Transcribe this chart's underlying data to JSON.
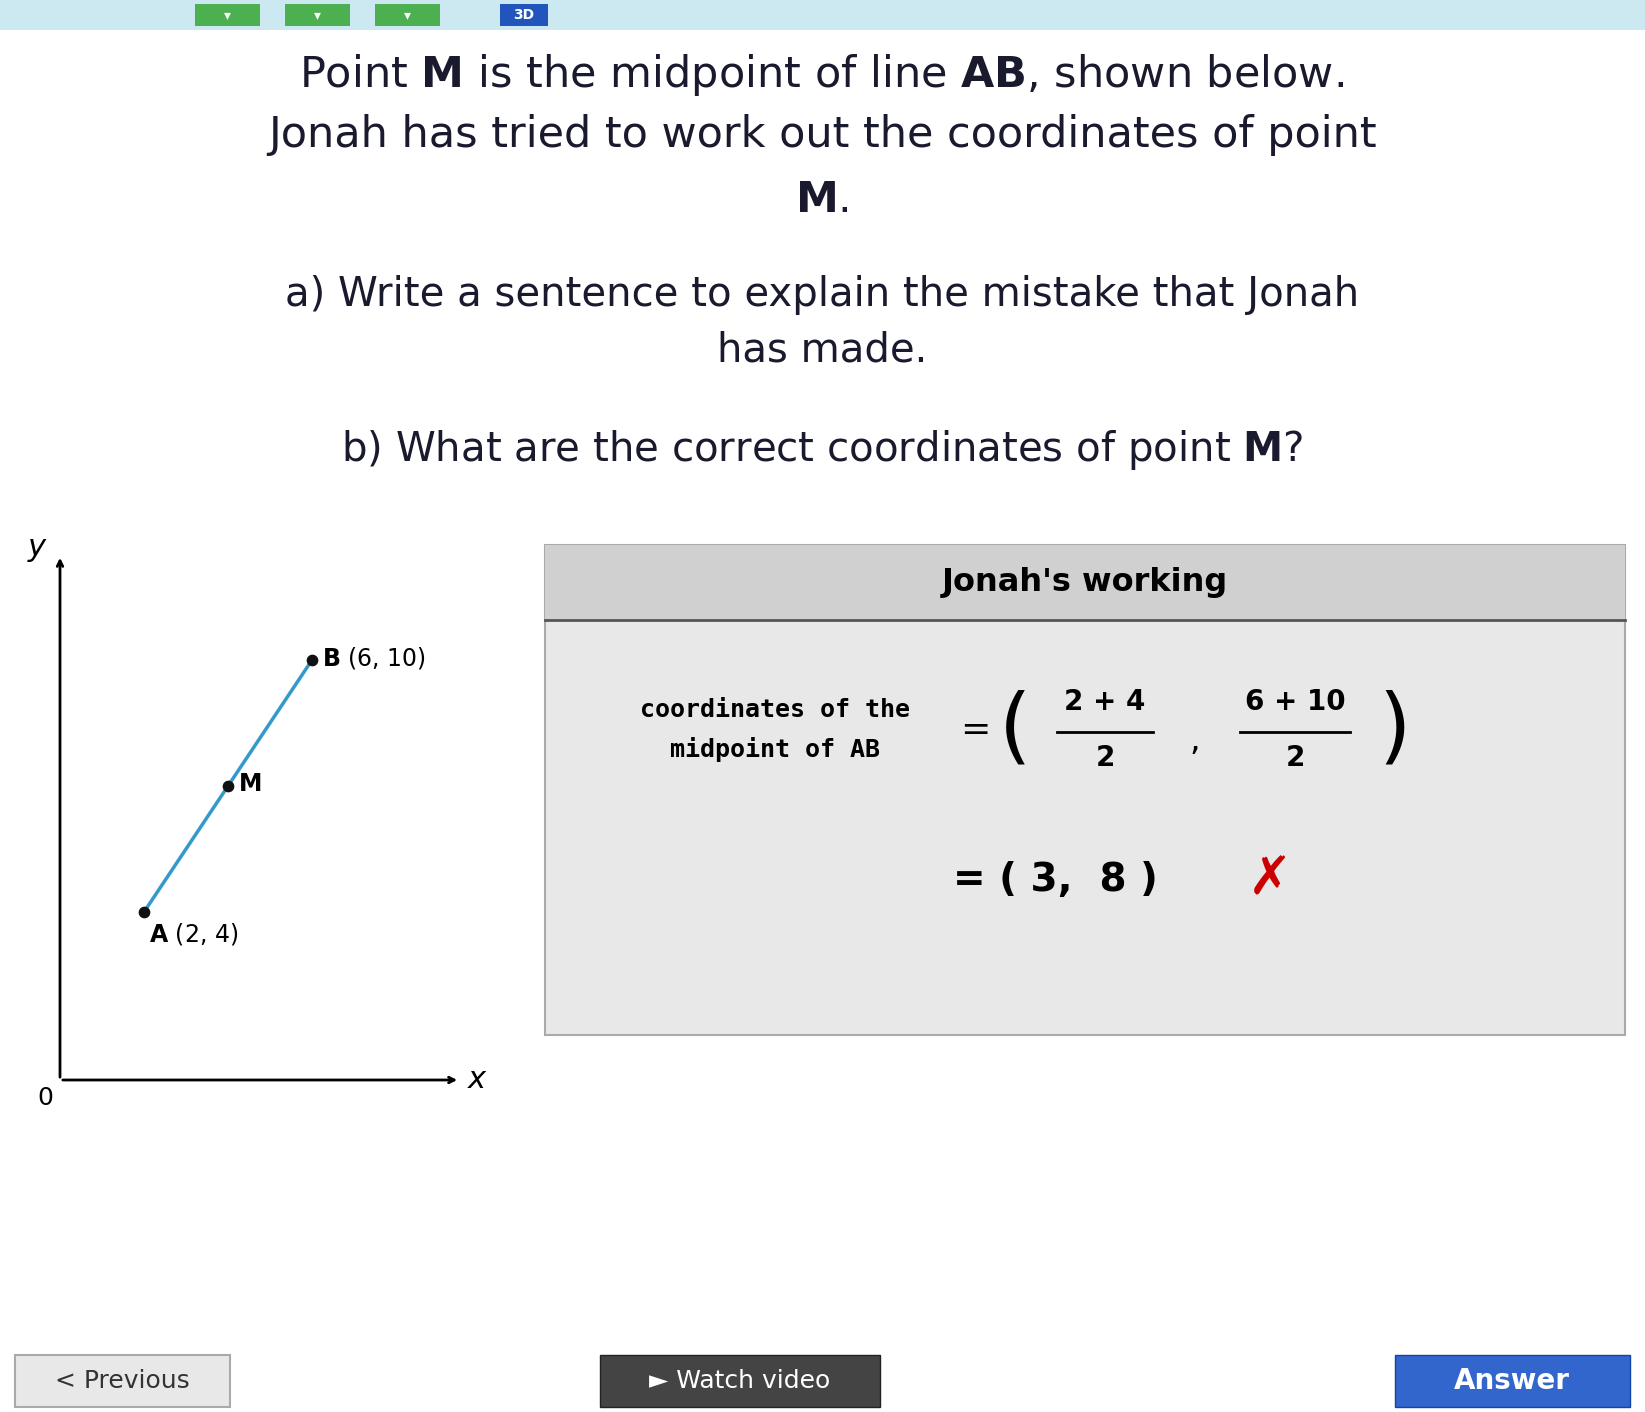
{
  "bg_color": "#ffffff",
  "nav_bar_color": "#cce8f0",
  "green_btn_color": "#4caf50",
  "blue_btn_color": "#2255bb",
  "title1": "Point $\\mathbf{M}$ is the midpoint of line $\\mathbf{AB}$, shown below.",
  "title2": "Jonah has tried to work out the coordinates of point",
  "title3": "$\\mathbf{M}$.",
  "part_a1": "a) Write a sentence to explain the mistake that Jonah",
  "part_a2": "has made.",
  "part_b": "b) What are the correct coordinates of point $\\mathbf{M}$?",
  "line_color": "#3399cc",
  "point_color": "#111111",
  "jonah_box_bg": "#e8e8e8",
  "jonah_header_bg": "#d0d0d0",
  "jonah_title": "Jonah's working",
  "jonah_label1": "coordinates of the",
  "jonah_label2": "midpoint of AB",
  "frac_num1": "2 + 4",
  "frac_den1": "2",
  "frac_num2": "6 + 10",
  "frac_den2": "2",
  "jonah_result": "= ( 3,  8 )",
  "cross_color": "#cc0000",
  "prev_btn_bg": "#e8e8e8",
  "prev_btn_text": "< Previous",
  "watch_btn_bg": "#444444",
  "watch_btn_text": "► Watch video",
  "ans_btn_bg": "#3366cc",
  "ans_btn_text": "Answer",
  "text_color": "#1a1a2e",
  "title_fontsize": 31,
  "body_fontsize": 29
}
